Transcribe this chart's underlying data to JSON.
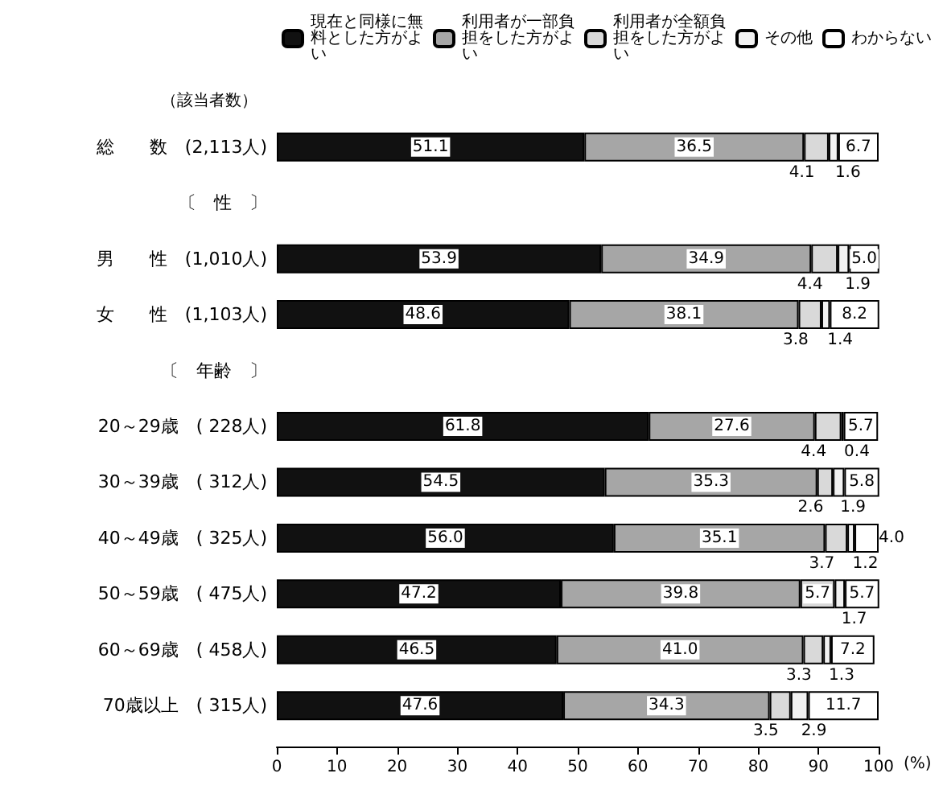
{
  "chart_data": {
    "type": "bar",
    "orientation": "horizontal",
    "stacked": true,
    "categories": [
      "総　　数　(2,113人)",
      "〔　性　〕",
      "男　　性　(1,010人)",
      "女　　性　(1,103人)",
      "〔　年齢　〕",
      "20～29歳　( 228人)",
      "30～39歳　( 312人)",
      "40～49歳　( 325人)",
      "50～59歳　( 475人)",
      "60～69歳　( 458人)",
      "70歳以上　( 315人)"
    ],
    "series": [
      {
        "name": "現在と同様に無料とした方がよい",
        "color": "#111111",
        "values": [
          51.1,
          null,
          53.9,
          48.6,
          null,
          61.8,
          54.5,
          56.0,
          47.2,
          46.5,
          47.6
        ],
        "value_labels": [
          "51.1",
          null,
          "53.9",
          "48.6",
          null,
          "61.8",
          "54.5",
          "56.0",
          "47.2",
          "46.5",
          "47.6"
        ]
      },
      {
        "name": "利用者が一部負担をした方がよい",
        "color": "#a6a6a6",
        "values": [
          36.5,
          null,
          34.9,
          38.1,
          null,
          27.6,
          35.3,
          35.1,
          39.8,
          41.0,
          34.3
        ],
        "value_labels": [
          "36.5",
          null,
          "34.9",
          "38.1",
          null,
          "27.6",
          "35.3",
          "35.1",
          "39.8",
          "41.0",
          "34.3"
        ]
      },
      {
        "name": "利用者が全額負担をした方がよい",
        "color": "#d9d9d9",
        "values": [
          4.1,
          null,
          4.4,
          3.8,
          null,
          4.4,
          2.6,
          3.7,
          5.7,
          3.3,
          3.5
        ],
        "value_labels": [
          "4.1",
          null,
          "4.4",
          "3.8",
          null,
          "4.4",
          "2.6",
          "3.7",
          "5.7",
          "3.3",
          "3.5"
        ]
      },
      {
        "name": "その他",
        "color": "#f2f2f2",
        "values": [
          1.6,
          null,
          1.9,
          1.4,
          null,
          0.4,
          1.9,
          1.2,
          1.7,
          1.3,
          2.9
        ],
        "value_labels": [
          "1.6",
          null,
          "1.9",
          "1.4",
          null,
          "0.4",
          "1.9",
          "1.2",
          "1.7",
          "1.3",
          "2.9"
        ]
      },
      {
        "name": "わからない",
        "color": "#ffffff",
        "values": [
          6.7,
          null,
          5.0,
          8.2,
          null,
          5.7,
          5.8,
          4.0,
          5.7,
          7.2,
          11.7
        ],
        "value_labels": [
          "6.7",
          null,
          "5.0",
          "8.2",
          null,
          "5.7",
          "5.8",
          "4.0",
          "5.7",
          "7.2",
          "11.7"
        ]
      }
    ],
    "xlim": [
      0,
      100
    ],
    "xticks": [
      0,
      10,
      20,
      30,
      40,
      50,
      60,
      70,
      80,
      90,
      100
    ],
    "xlabel": "(%)",
    "grid": false,
    "legend": "top",
    "annotations": [
      "（該当者数）"
    ]
  }
}
